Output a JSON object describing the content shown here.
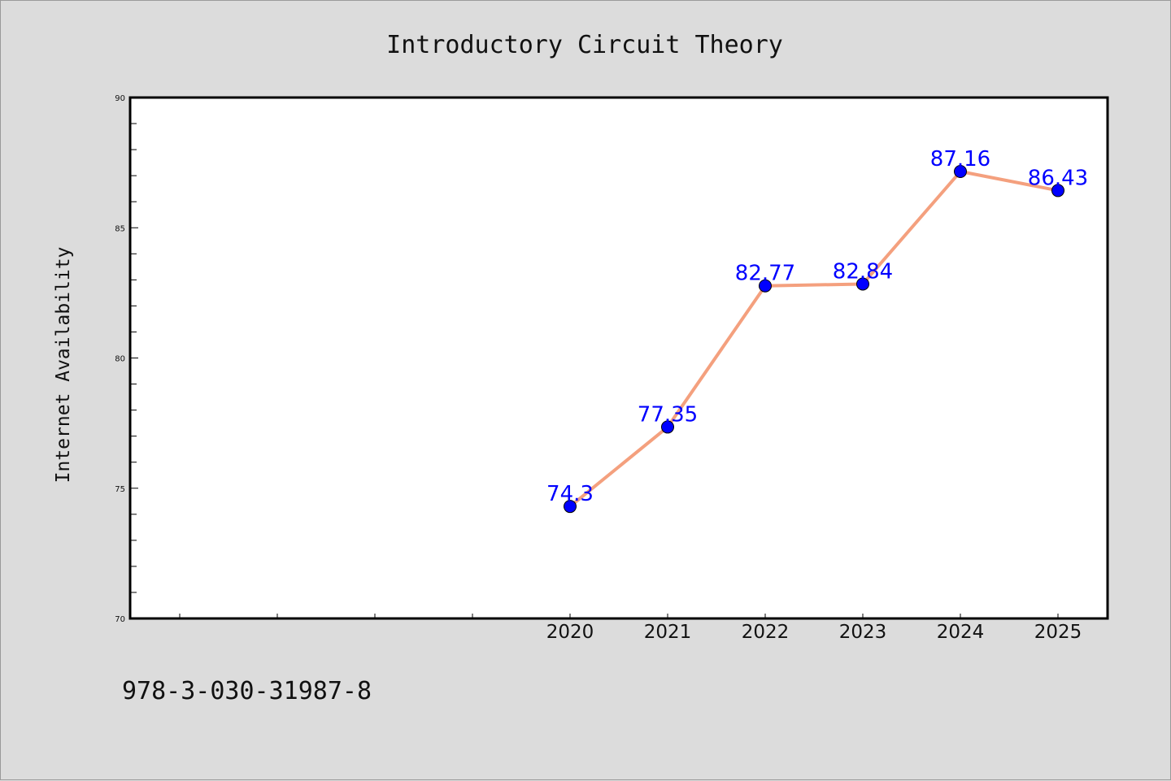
{
  "chart_data": {
    "type": "line",
    "title": "Introductory Circuit Theory",
    "xlabel": "",
    "ylabel": "Internet Availability",
    "categories": [
      "2020",
      "2021",
      "2022",
      "2023",
      "2024",
      "2025"
    ],
    "values": [
      74.3,
      77.35,
      82.77,
      82.84,
      87.16,
      86.43
    ],
    "data_labels": [
      "74.3",
      "77.35",
      "82.77",
      "82.84",
      "87.16",
      "86.43"
    ],
    "ylim": [
      70,
      90
    ],
    "yticks": [
      "70",
      "75",
      "80",
      "85",
      "90"
    ],
    "grid": false,
    "legend": "none",
    "colors": {
      "line": "#f4a07e",
      "marker": "#0000ff",
      "data_label": "#0000ff",
      "background": "#dcdcdc",
      "plot_area": "#ffffff"
    }
  },
  "footer": {
    "isbn": "978-3-030-31987-8"
  }
}
